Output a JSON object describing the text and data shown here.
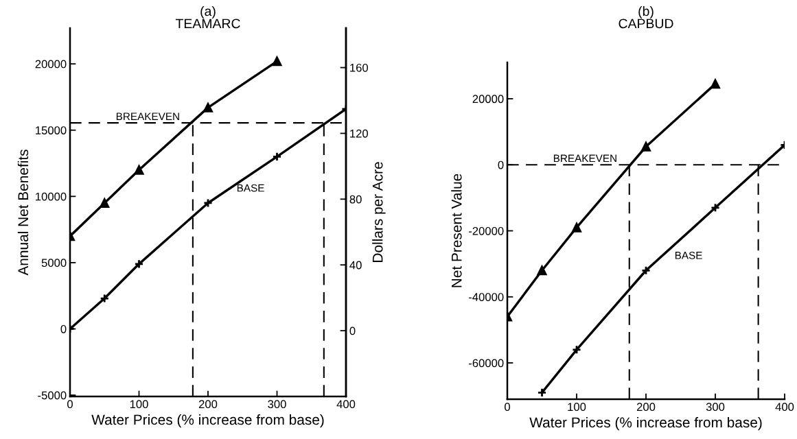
{
  "chart_data": [
    {
      "type": "line",
      "title": "(a)",
      "subtitle": "TEAMARC",
      "xlabel": "Water Prices (% increase from base)",
      "ylabel": "Annual Net Benefits",
      "y2label": "Dollars per Acre",
      "series": [
        {
          "color": "#000000",
          "marker": "triangle",
          "x": [
            0,
            50,
            100,
            200,
            300
          ],
          "values": [
            7000,
            9500,
            12000,
            16700,
            20200
          ]
        },
        {
          "name": "BASE",
          "color": "#000000",
          "marker": "cross",
          "x": [
            0,
            50,
            100,
            200,
            300,
            400
          ],
          "values": [
            0,
            2300,
            4900,
            9500,
            13000,
            16600
          ]
        }
      ],
      "xlim": [
        0,
        400
      ],
      "xticks": [
        0,
        100,
        200,
        300,
        400
      ],
      "ylim": [
        -5100,
        22700
      ],
      "yticks": [
        -5000,
        0,
        5000,
        10000,
        15000,
        20000
      ],
      "y2lim": [
        -40,
        184
      ],
      "y2ticks": [
        0,
        40,
        80,
        120,
        160
      ],
      "ref_lines": [
        {
          "axis": "y",
          "value": 15550,
          "color": "#000000",
          "line_style": "dashed",
          "label": "BREAKEVEN"
        },
        {
          "axis": "x",
          "value": 178,
          "color": "#000000",
          "line_style": "dashed"
        },
        {
          "axis": "x",
          "value": 368,
          "color": "#000000",
          "line_style": "dashed"
        }
      ],
      "grid": false,
      "legend": false
    },
    {
      "type": "line",
      "title": "(b)",
      "subtitle": "CAPBUD",
      "xlabel": "Water Prices (% increase from base)",
      "ylabel": "Net Present Value",
      "series": [
        {
          "color": "#000000",
          "marker": "triangle",
          "x": [
            0,
            50,
            100,
            200,
            300
          ],
          "values": [
            -46000,
            -32000,
            -19000,
            5500,
            24500
          ]
        },
        {
          "name": "BASE",
          "color": "#000000",
          "marker": "cross",
          "x": [
            50,
            100,
            200,
            300,
            400
          ],
          "values": [
            -69000,
            -56000,
            -32000,
            -13000,
            6000
          ]
        }
      ],
      "xlim": [
        0,
        400
      ],
      "xticks": [
        0,
        100,
        200,
        300,
        400
      ],
      "ylim": [
        -71000,
        31000
      ],
      "yticks": [
        -60000,
        -40000,
        -20000,
        0,
        20000
      ],
      "ref_lines": [
        {
          "axis": "y",
          "value": 0,
          "color": "#000000",
          "line_style": "dashed",
          "label": "BREAKEVEN"
        },
        {
          "axis": "x",
          "value": 176,
          "color": "#000000",
          "line_style": "dashed"
        },
        {
          "axis": "x",
          "value": 362,
          "color": "#000000",
          "line_style": "dashed"
        }
      ],
      "grid": false,
      "legend": false
    }
  ]
}
